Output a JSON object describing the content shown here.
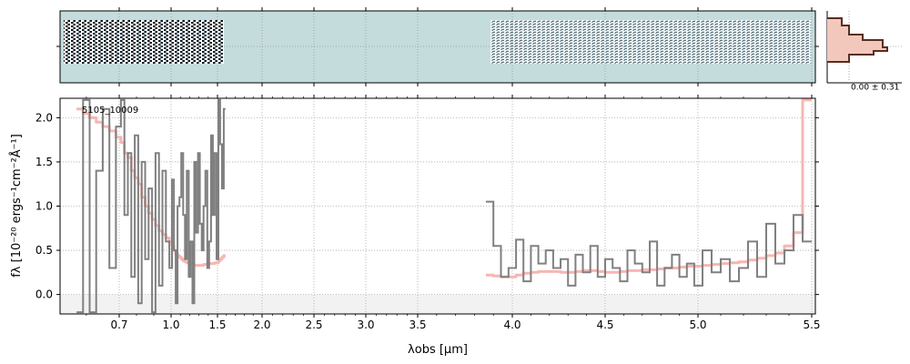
{
  "chart_data": {
    "type": "line",
    "object_label": "5105_10009",
    "xlabel": "λobs [μm]",
    "ylabel": "fλ [10⁻²⁰ ergs⁻¹cm⁻²Å⁻¹]",
    "ylim": [
      -0.22,
      2.22
    ],
    "x_scale": "custom (compressed at short wavelengths)",
    "x_ticks": [
      "0.7",
      "1.0",
      "1.5",
      "2.0",
      "2.5",
      "3.0",
      "3.5",
      "4.0",
      "4.5",
      "5.0",
      "5.5"
    ],
    "y_ticks": [
      "0.0",
      "0.5",
      "1.0",
      "1.5",
      "2.0"
    ],
    "grid": true,
    "histogram_label": "0.00 ± 0.31",
    "colors": {
      "data": "#808080",
      "model": "#f7b6b2",
      "image_background": "#c5dcdc",
      "image_dark": "#111820",
      "histogram_fill": "#f3c8bc",
      "histogram_edge": "#5a2e22"
    },
    "series": [
      {
        "segment": "blue",
        "data_x": [
          0.58,
          0.6,
          0.62,
          0.64,
          0.66,
          0.68,
          0.7,
          0.72,
          0.74,
          0.76,
          0.78,
          0.8,
          0.82,
          0.84,
          0.86,
          0.88,
          0.9,
          0.92,
          0.94,
          0.96,
          0.98,
          1.0,
          1.02,
          1.04,
          1.06,
          1.08,
          1.1,
          1.12,
          1.14,
          1.16,
          1.18,
          1.2,
          1.22,
          1.24,
          1.26,
          1.28,
          1.3,
          1.32,
          1.34,
          1.36,
          1.38,
          1.4,
          1.42,
          1.44,
          1.46,
          1.48,
          1.5,
          1.52,
          1.54,
          1.56,
          1.58
        ],
        "data_y": [
          -0.2,
          2.2,
          -0.2,
          1.4,
          2.1,
          0.3,
          1.9,
          2.2,
          0.9,
          1.6,
          0.2,
          1.8,
          -0.1,
          1.5,
          0.4,
          1.2,
          -0.2,
          1.6,
          0.1,
          1.4,
          0.6,
          0.3,
          1.3,
          0.5,
          -0.1,
          1.0,
          1.1,
          1.6,
          0.9,
          0.4,
          1.4,
          0.2,
          0.6,
          -0.1,
          1.5,
          0.7,
          1.6,
          0.8,
          0.5,
          1.0,
          1.4,
          0.3,
          0.6,
          1.8,
          0.9,
          1.6,
          0.4,
          2.2,
          1.7,
          1.2,
          2.1
        ],
        "model_y": [
          2.1,
          2.05,
          2.0,
          1.95,
          1.9,
          1.85,
          1.78,
          1.72,
          1.6,
          1.55,
          1.4,
          1.32,
          1.25,
          1.1,
          1.0,
          0.92,
          0.85,
          0.78,
          0.72,
          0.68,
          0.64,
          0.6,
          0.55,
          0.5,
          0.46,
          0.44,
          0.42,
          0.4,
          0.38,
          0.37,
          0.36,
          0.35,
          0.34,
          0.34,
          0.33,
          0.33,
          0.33,
          0.33,
          0.33,
          0.34,
          0.34,
          0.35,
          0.35,
          0.35,
          0.35,
          0.36,
          0.36,
          0.38,
          0.4,
          0.42,
          0.44
        ]
      },
      {
        "segment": "red",
        "data_x": [
          3.88,
          3.92,
          3.96,
          4.0,
          4.04,
          4.08,
          4.12,
          4.16,
          4.2,
          4.24,
          4.28,
          4.32,
          4.36,
          4.4,
          4.44,
          4.48,
          4.52,
          4.56,
          4.6,
          4.64,
          4.68,
          4.72,
          4.76,
          4.8,
          4.84,
          4.88,
          4.92,
          4.96,
          5.0,
          5.04,
          5.08,
          5.12,
          5.16,
          5.2,
          5.24,
          5.28,
          5.32,
          5.36,
          5.4,
          5.44,
          5.48
        ],
        "data_y": [
          1.05,
          0.55,
          0.2,
          0.3,
          0.62,
          0.15,
          0.55,
          0.35,
          0.5,
          0.3,
          0.4,
          0.1,
          0.45,
          0.25,
          0.55,
          0.2,
          0.4,
          0.3,
          0.15,
          0.5,
          0.35,
          0.25,
          0.6,
          0.1,
          0.3,
          0.45,
          0.2,
          0.35,
          0.1,
          0.5,
          0.25,
          0.4,
          0.15,
          0.3,
          0.6,
          0.2,
          0.8,
          0.35,
          0.5,
          0.9,
          0.6
        ],
        "model_y": [
          0.22,
          0.21,
          0.2,
          0.2,
          0.22,
          0.24,
          0.25,
          0.26,
          0.26,
          0.26,
          0.25,
          0.25,
          0.26,
          0.27,
          0.27,
          0.26,
          0.25,
          0.25,
          0.26,
          0.27,
          0.27,
          0.28,
          0.28,
          0.29,
          0.3,
          0.3,
          0.31,
          0.32,
          0.32,
          0.33,
          0.34,
          0.35,
          0.36,
          0.37,
          0.39,
          0.41,
          0.44,
          0.47,
          0.55,
          0.7,
          2.2
        ]
      }
    ]
  }
}
